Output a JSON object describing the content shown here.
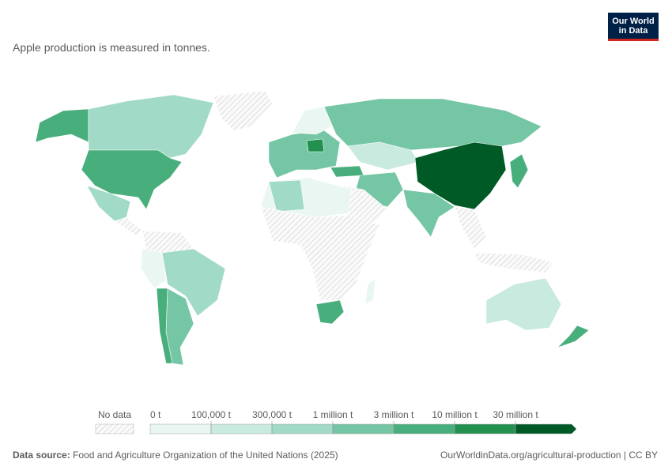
{
  "logo": {
    "line1": "Our World",
    "line2": "in Data"
  },
  "subtitle": "Apple production is measured in tonnes.",
  "legend": {
    "no_data": "No data",
    "thresholds": [
      "0 t",
      "100,000 t",
      "300,000 t",
      "1 million t",
      "3 million t",
      "10 million t",
      "30 million t"
    ],
    "colors": [
      "#eaf6f2",
      "#c9eadf",
      "#a1dac6",
      "#74c6a4",
      "#48ae7c",
      "#22904f",
      "#005a25"
    ]
  },
  "footer": {
    "source_label": "Data source:",
    "source_text": "Food and Agriculture Organization of the United Nations (2025)",
    "credit": "OurWorldinData.org/agricultural-production | CC BY"
  }
}
